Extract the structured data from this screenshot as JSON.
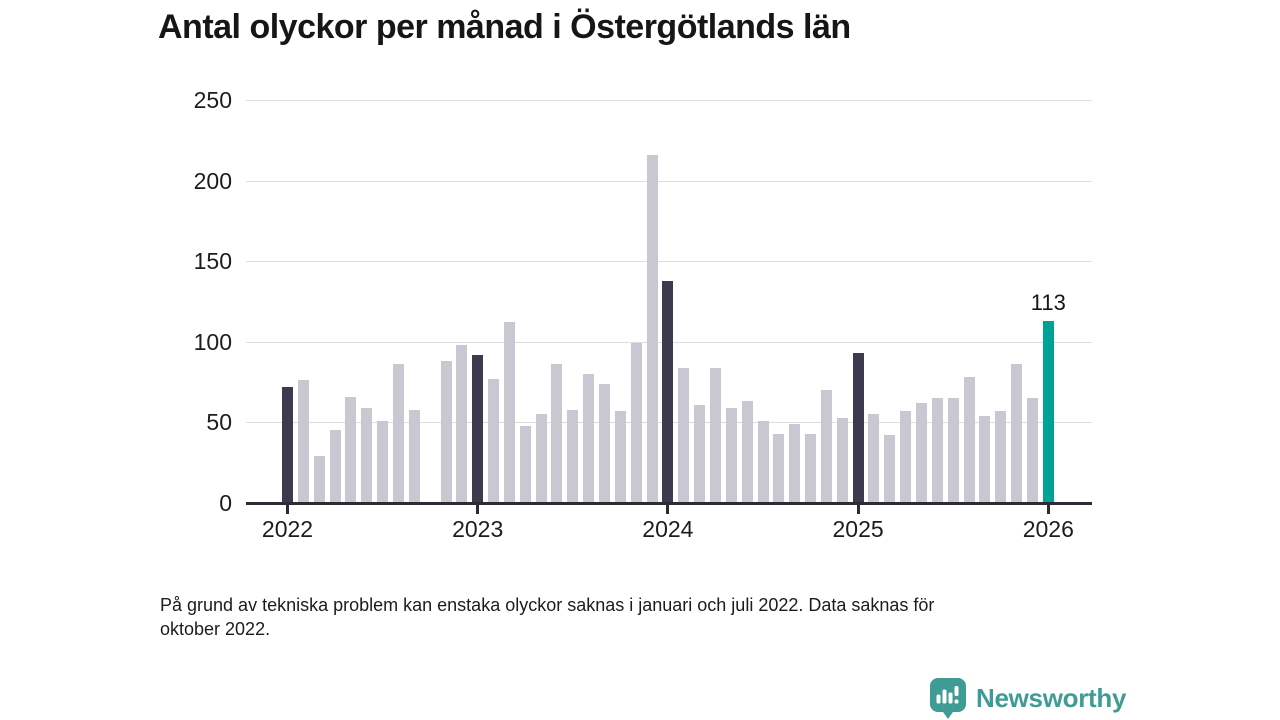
{
  "chart_data": {
    "type": "bar",
    "title": "Antal olyckor per månad i Östergötlands län",
    "xlabel": "",
    "ylabel": "",
    "ylim": [
      0,
      250
    ],
    "y_ticks": [
      0,
      50,
      100,
      150,
      200,
      250
    ],
    "grid": "horizontal",
    "x_tick_labels": [
      "2022",
      "2023",
      "2024",
      "2025",
      "2026"
    ],
    "annotation_label": "113",
    "months": [
      {
        "month": "2022-01",
        "value": 72,
        "role": "january"
      },
      {
        "month": "2022-02",
        "value": 76,
        "role": "default"
      },
      {
        "month": "2022-03",
        "value": 29,
        "role": "default"
      },
      {
        "month": "2022-04",
        "value": 45,
        "role": "default"
      },
      {
        "month": "2022-05",
        "value": 66,
        "role": "default"
      },
      {
        "month": "2022-06",
        "value": 59,
        "role": "default"
      },
      {
        "month": "2022-07",
        "value": 51,
        "role": "default"
      },
      {
        "month": "2022-08",
        "value": 86,
        "role": "default"
      },
      {
        "month": "2022-09",
        "value": 58,
        "role": "default"
      },
      {
        "month": "2022-10",
        "value": null,
        "role": "missing"
      },
      {
        "month": "2022-11",
        "value": 88,
        "role": "default"
      },
      {
        "month": "2022-12",
        "value": 98,
        "role": "default"
      },
      {
        "month": "2023-01",
        "value": 92,
        "role": "january"
      },
      {
        "month": "2023-02",
        "value": 77,
        "role": "default"
      },
      {
        "month": "2023-03",
        "value": 112,
        "role": "default"
      },
      {
        "month": "2023-04",
        "value": 48,
        "role": "default"
      },
      {
        "month": "2023-05",
        "value": 55,
        "role": "default"
      },
      {
        "month": "2023-06",
        "value": 86,
        "role": "default"
      },
      {
        "month": "2023-07",
        "value": 58,
        "role": "default"
      },
      {
        "month": "2023-08",
        "value": 80,
        "role": "default"
      },
      {
        "month": "2023-09",
        "value": 74,
        "role": "default"
      },
      {
        "month": "2023-10",
        "value": 57,
        "role": "default"
      },
      {
        "month": "2023-11",
        "value": 99,
        "role": "default"
      },
      {
        "month": "2023-12",
        "value": 216,
        "role": "default"
      },
      {
        "month": "2024-01",
        "value": 138,
        "role": "january"
      },
      {
        "month": "2024-02",
        "value": 84,
        "role": "default"
      },
      {
        "month": "2024-03",
        "value": 61,
        "role": "default"
      },
      {
        "month": "2024-04",
        "value": 84,
        "role": "default"
      },
      {
        "month": "2024-05",
        "value": 59,
        "role": "default"
      },
      {
        "month": "2024-06",
        "value": 63,
        "role": "default"
      },
      {
        "month": "2024-07",
        "value": 51,
        "role": "default"
      },
      {
        "month": "2024-08",
        "value": 43,
        "role": "default"
      },
      {
        "month": "2024-09",
        "value": 49,
        "role": "default"
      },
      {
        "month": "2024-10",
        "value": 43,
        "role": "default"
      },
      {
        "month": "2024-11",
        "value": 70,
        "role": "default"
      },
      {
        "month": "2024-12",
        "value": 53,
        "role": "default"
      },
      {
        "month": "2025-01",
        "value": 93,
        "role": "january"
      },
      {
        "month": "2025-02",
        "value": 55,
        "role": "default"
      },
      {
        "month": "2025-03",
        "value": 42,
        "role": "default"
      },
      {
        "month": "2025-04",
        "value": 57,
        "role": "default"
      },
      {
        "month": "2025-05",
        "value": 62,
        "role": "default"
      },
      {
        "month": "2025-06",
        "value": 65,
        "role": "default"
      },
      {
        "month": "2025-07",
        "value": 65,
        "role": "default"
      },
      {
        "month": "2025-08",
        "value": 78,
        "role": "default"
      },
      {
        "month": "2025-09",
        "value": 54,
        "role": "default"
      },
      {
        "month": "2025-10",
        "value": 57,
        "role": "default"
      },
      {
        "month": "2025-11",
        "value": 86,
        "role": "default"
      },
      {
        "month": "2025-12",
        "value": 65,
        "role": "default"
      },
      {
        "month": "2026-01",
        "value": 113,
        "role": "highlight"
      }
    ],
    "colors": {
      "bar_default": "#c9c8d2",
      "bar_january": "#3b3a4e",
      "bar_highlight": "#00a296",
      "gridline": "#dedee0",
      "axis": "#2d2c34",
      "text": "#1d1d1d"
    }
  },
  "footnote": {
    "line1": "På grund av tekniska problem kan enstaka olyckor saknas i januari och juli 2022. Data saknas för",
    "line2": "oktober 2022."
  },
  "branding": {
    "name": "Newsworthy",
    "color": "#3f9c94"
  }
}
